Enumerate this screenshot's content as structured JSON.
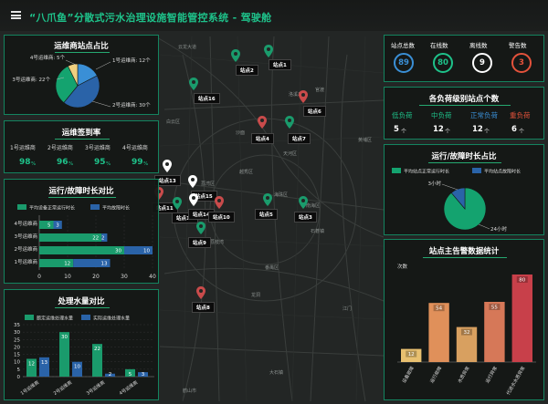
{
  "app": {
    "title": "“八爪鱼”分散式污水治理设施智能管控系统 - 驾驶舱"
  },
  "map": {
    "markers": [
      {
        "label": "站点2",
        "color": "#1a9b6c"
      },
      {
        "label": "站点1",
        "color": "#1a9b6c"
      },
      {
        "label": "站点16",
        "color": "#1a9b6c"
      },
      {
        "label": "站点6",
        "color": "#c94b4b"
      },
      {
        "label": "站点4",
        "color": "#c94b4b"
      },
      {
        "label": "站点7",
        "color": "#1a9b6c"
      },
      {
        "label": "站点13",
        "color": "#ffffff"
      },
      {
        "label": "站点15",
        "color": "#ffffff"
      },
      {
        "label": "站点11",
        "color": "#c94b4b"
      },
      {
        "label": "站点12",
        "color": "#1a9b6c"
      },
      {
        "label": "站点14",
        "color": "#ffffff"
      },
      {
        "label": "站点10",
        "color": "#c94b4b"
      },
      {
        "label": "站点5",
        "color": "#1a9b6c"
      },
      {
        "label": "站点3",
        "color": "#1a9b6c"
      },
      {
        "label": "站点9",
        "color": "#1a9b6c"
      },
      {
        "label": "站点8",
        "color": "#c94b4b"
      }
    ],
    "places": [
      "云龙大道",
      "官渡",
      "白云区",
      "黄埔区",
      "天河区",
      "越秀区",
      "荔湾区",
      "海珠区",
      "番禺区",
      "南海区",
      "荔枝湾",
      "鹤山市",
      "江门",
      "洛溪岛",
      "沙面",
      "龙洞",
      "石碁镇",
      "大石镇"
    ]
  },
  "left": {
    "pie": {
      "title": "运维商站点占比"
    },
    "sign": {
      "title": "运维签到率",
      "items": [
        {
          "name": "1号运维商",
          "value": "98",
          "unit": "%"
        },
        {
          "name": "2号运维商",
          "value": "96",
          "unit": "%"
        },
        {
          "name": "3号运维商",
          "value": "95",
          "unit": "%"
        },
        {
          "name": "4号运维商",
          "value": "99",
          "unit": "%"
        }
      ]
    },
    "hbar": {
      "title": "运行/故障时长对比"
    },
    "vbar": {
      "title": "处理水量对比"
    }
  },
  "right": {
    "stats": {
      "items": [
        {
          "label": "站点总数",
          "value": "89",
          "color": "#3a8fd6"
        },
        {
          "label": "在线数",
          "value": "80",
          "color": "#1ec28a"
        },
        {
          "label": "离线数",
          "value": "9",
          "color": "#ffffff"
        },
        {
          "label": "警告数",
          "value": "3",
          "color": "#e4523b"
        }
      ]
    },
    "load": {
      "title": "各负荷级别站点个数",
      "items": [
        {
          "label": "低负荷",
          "value": "5",
          "unit": "个",
          "color": "#1ec28a"
        },
        {
          "label": "中负荷",
          "value": "12",
          "unit": "个",
          "color": "#1ec28a"
        },
        {
          "label": "正常负荷",
          "value": "12",
          "unit": "个",
          "color": "#3a8fd6"
        },
        {
          "label": "重负荷",
          "value": "6",
          "unit": "个",
          "color": "#e4523b"
        }
      ]
    },
    "runpie": {
      "title": "运行/故障时长占比"
    },
    "alarm": {
      "title": "站点主告警数据统计"
    }
  },
  "chart_data": [
    {
      "type": "pie",
      "title": "运维商站点占比",
      "labels": [
        "1号运维商",
        "2号运维商",
        "3号运维商",
        "4号运维商"
      ],
      "values": [
        12,
        30,
        22,
        5
      ],
      "display": [
        "1号运维商: 12个",
        "2号运维商: 30个",
        "3号运维商: 22个",
        "4号运维商: 5个"
      ],
      "colors": [
        "#3a8fd6",
        "#2a63a8",
        "#14a36f",
        "#f0d080"
      ]
    },
    {
      "type": "bar",
      "orientation": "horizontal",
      "title": "运行/故障时长对比",
      "categories": [
        "1号运维商",
        "2号运维商",
        "3号运维商",
        "4号运维商"
      ],
      "series": [
        {
          "name": "平均设备正常运行时长",
          "values": [
            12,
            30,
            22,
            5
          ],
          "color": "#1a9b6c"
        },
        {
          "name": "平均故障时长",
          "values": [
            13,
            10,
            2,
            3
          ],
          "color": "#2a63a8"
        }
      ],
      "xticks": [
        "0",
        "10",
        "20",
        "30",
        "40"
      ],
      "xlim": [
        0,
        40
      ]
    },
    {
      "type": "bar",
      "title": "处理水量对比",
      "categories": [
        "1号运维商",
        "2号运维商",
        "3号运维商",
        "4号运维商"
      ],
      "series": [
        {
          "name": "额定运维处理水量",
          "values": [
            12,
            30,
            22,
            5
          ],
          "color": "#1a9b6c"
        },
        {
          "name": "实际运维处理水量",
          "values": [
            13,
            10,
            2,
            3
          ],
          "color": "#2a63a8"
        }
      ],
      "yticks": [
        "0",
        "5",
        "10",
        "15",
        "20",
        "25",
        "30",
        "35"
      ],
      "ylim": [
        0,
        35
      ]
    },
    {
      "type": "pie",
      "title": "运行/故障时长占比",
      "labels": [
        "平均站点正常运行时长",
        "平均站点故障时长"
      ],
      "values": [
        24,
        3
      ],
      "display": [
        "24小时",
        "3小时"
      ],
      "colors": [
        "#14a36f",
        "#2a63a8"
      ]
    },
    {
      "type": "bar",
      "title": "站点主告警数据统计",
      "ylabel": "次数",
      "categories": [
        "设备故障",
        "运行故障",
        "水质异常",
        "运行异常",
        "代进水水质异常"
      ],
      "values": [
        12,
        54,
        32,
        55,
        80
      ],
      "colors": [
        "#e8c070",
        "#e0905a",
        "#d8a060",
        "#d67858",
        "#c8404a"
      ],
      "ylim": [
        0,
        80
      ]
    }
  ]
}
